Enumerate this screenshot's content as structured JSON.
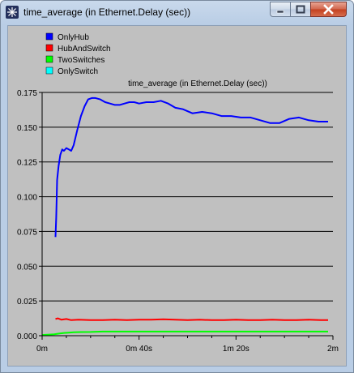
{
  "window": {
    "title": "time_average (in Ethernet.Delay (sec))"
  },
  "icons": {
    "app": "star-icon",
    "minimize": "minimize-icon",
    "maximize": "maximize-icon",
    "close": "close-icon"
  },
  "chart_data": {
    "type": "line",
    "title": "time_average (in Ethernet.Delay (sec))",
    "xlabel": "",
    "ylabel": "",
    "xlim": [
      0,
      120
    ],
    "ylim": [
      0,
      0.175
    ],
    "grid": true,
    "legend_position": "top-left",
    "x_ticks": [
      {
        "value": 0,
        "label": "0m"
      },
      {
        "value": 40,
        "label": "0m 40s"
      },
      {
        "value": 80,
        "label": "1m 20s"
      },
      {
        "value": 120,
        "label": "2m"
      }
    ],
    "y_ticks": [
      {
        "value": 0,
        "label": "0.000"
      },
      {
        "value": 0.025,
        "label": "0.025"
      },
      {
        "value": 0.05,
        "label": "0.050"
      },
      {
        "value": 0.075,
        "label": "0.075"
      },
      {
        "value": 0.1,
        "label": "0.100"
      },
      {
        "value": 0.125,
        "label": "0.125"
      },
      {
        "value": 0.15,
        "label": "0.150"
      },
      {
        "value": 0.175,
        "label": "0.175"
      }
    ],
    "series": [
      {
        "name": "OnlyHub",
        "color": "#0000ff",
        "x": [
          5.5,
          5.8,
          6.2,
          6.8,
          7.5,
          8.3,
          9,
          10,
          11,
          12,
          13,
          14.5,
          16,
          17.5,
          19,
          20.5,
          22,
          24,
          26,
          28,
          30,
          32,
          34,
          36,
          38,
          40,
          43,
          46,
          49,
          52,
          55,
          58,
          62,
          66,
          70,
          74,
          78,
          82,
          86,
          90,
          94,
          98,
          102,
          106,
          110,
          114,
          118
        ],
        "y": [
          0.071,
          0.085,
          0.112,
          0.122,
          0.13,
          0.134,
          0.133,
          0.135,
          0.134,
          0.133,
          0.137,
          0.148,
          0.158,
          0.165,
          0.17,
          0.171,
          0.171,
          0.17,
          0.168,
          0.167,
          0.166,
          0.166,
          0.167,
          0.168,
          0.168,
          0.167,
          0.168,
          0.168,
          0.169,
          0.167,
          0.164,
          0.163,
          0.16,
          0.161,
          0.16,
          0.158,
          0.158,
          0.157,
          0.157,
          0.155,
          0.153,
          0.153,
          0.156,
          0.157,
          0.155,
          0.154,
          0.154
        ]
      },
      {
        "name": "HubAndSwitch",
        "color": "#ff0000",
        "x": [
          5.5,
          6.5,
          8,
          10,
          12,
          15,
          20,
          25,
          30,
          35,
          40,
          45,
          50,
          55,
          60,
          65,
          70,
          75,
          80,
          85,
          90,
          95,
          100,
          105,
          110,
          115,
          118
        ],
        "y": [
          0.012,
          0.0125,
          0.0115,
          0.012,
          0.0112,
          0.0115,
          0.0112,
          0.0112,
          0.0115,
          0.0112,
          0.0115,
          0.0115,
          0.0118,
          0.0115,
          0.0112,
          0.0115,
          0.0112,
          0.0112,
          0.0115,
          0.0112,
          0.0112,
          0.0115,
          0.0112,
          0.0112,
          0.0115,
          0.0112,
          0.0112
        ],
        "y_note": ""
      },
      {
        "name": "TwoSwitches",
        "color": "#00ff00",
        "x": [
          0,
          3,
          5,
          7,
          9,
          11,
          13,
          16,
          20,
          25,
          30,
          40,
          50,
          60,
          70,
          80,
          90,
          100,
          110,
          118
        ],
        "y": [
          0.0005,
          0.0008,
          0.001,
          0.0015,
          0.002,
          0.0022,
          0.0025,
          0.0026,
          0.0027,
          0.003,
          0.003,
          0.003,
          0.003,
          0.003,
          0.003,
          0.003,
          0.003,
          0.003,
          0.003,
          0.003
        ]
      },
      {
        "name": "OnlySwitch",
        "color": "#00ffff",
        "x": [],
        "y": []
      }
    ]
  }
}
